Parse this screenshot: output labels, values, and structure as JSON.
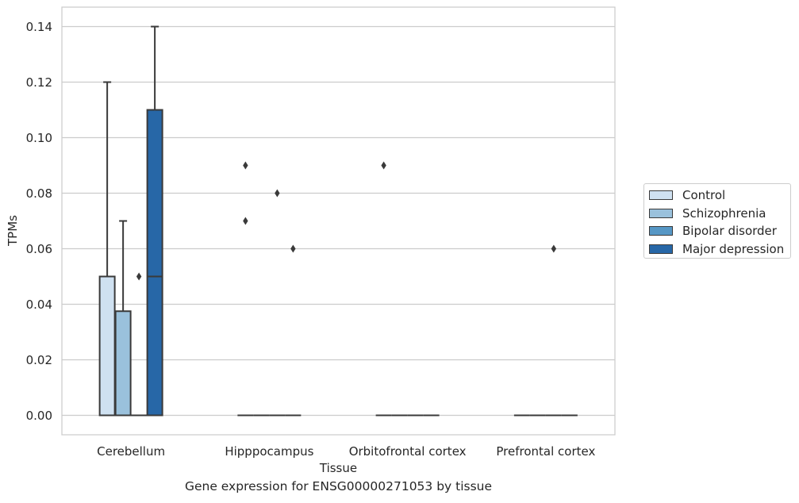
{
  "chart_data": {
    "type": "box",
    "xlabel": "Tissue",
    "ylabel": "TPMs",
    "ylim": [
      -0.0069,
      0.147
    ],
    "yticks": [
      0.0,
      0.02,
      0.04,
      0.06,
      0.08,
      0.1,
      0.12,
      0.14
    ],
    "ytick_labels": [
      "0.00",
      "0.02",
      "0.04",
      "0.06",
      "0.08",
      "0.10",
      "0.12",
      "0.14"
    ],
    "grid": true,
    "legend_position": "right",
    "categories": [
      "Cerebellum",
      "Hipppocampus",
      "Orbitofrontal cortex",
      "Prefrontal cortex"
    ],
    "series": [
      {
        "name": "Control",
        "color": "#cfe1f1"
      },
      {
        "name": "Schizophrenia",
        "color": "#9ac1dc"
      },
      {
        "name": "Bipolar disorder",
        "color": "#5697c5"
      },
      {
        "name": "Major depression",
        "color": "#2767a7"
      }
    ],
    "boxes": [
      {
        "category": 0,
        "series": 0,
        "q1": 0.0,
        "median": 0.0,
        "q3": 0.05,
        "whisker_low": 0.0,
        "whisker_high": 0.12,
        "outliers": []
      },
      {
        "category": 0,
        "series": 1,
        "q1": 0.0,
        "median": 0.0,
        "q3": 0.0375,
        "whisker_low": 0.0,
        "whisker_high": 0.07,
        "outliers": []
      },
      {
        "category": 0,
        "series": 2,
        "q1": 0.0,
        "median": 0.0,
        "q3": 0.0,
        "whisker_low": 0.0,
        "whisker_high": 0.0,
        "outliers": [
          0.05
        ]
      },
      {
        "category": 0,
        "series": 3,
        "q1": 0.0,
        "median": 0.05,
        "q3": 0.11,
        "whisker_low": 0.0,
        "whisker_high": 0.14,
        "outliers": []
      },
      {
        "category": 1,
        "series": 0,
        "q1": 0.0,
        "median": 0.0,
        "q3": 0.0,
        "whisker_low": 0.0,
        "whisker_high": 0.0,
        "outliers": [
          0.09,
          0.07
        ]
      },
      {
        "category": 1,
        "series": 1,
        "q1": 0.0,
        "median": 0.0,
        "q3": 0.0,
        "whisker_low": 0.0,
        "whisker_high": 0.0,
        "outliers": []
      },
      {
        "category": 1,
        "series": 2,
        "q1": 0.0,
        "median": 0.0,
        "q3": 0.0,
        "whisker_low": 0.0,
        "whisker_high": 0.0,
        "outliers": [
          0.08
        ]
      },
      {
        "category": 1,
        "series": 3,
        "q1": 0.0,
        "median": 0.0,
        "q3": 0.0,
        "whisker_low": 0.0,
        "whisker_high": 0.0,
        "outliers": [
          0.06
        ]
      },
      {
        "category": 2,
        "series": 0,
        "q1": 0.0,
        "median": 0.0,
        "q3": 0.0,
        "whisker_low": 0.0,
        "whisker_high": 0.0,
        "outliers": [
          0.09
        ]
      },
      {
        "category": 2,
        "series": 1,
        "q1": 0.0,
        "median": 0.0,
        "q3": 0.0,
        "whisker_low": 0.0,
        "whisker_high": 0.0,
        "outliers": []
      },
      {
        "category": 2,
        "series": 2,
        "q1": 0.0,
        "median": 0.0,
        "q3": 0.0,
        "whisker_low": 0.0,
        "whisker_high": 0.0,
        "outliers": []
      },
      {
        "category": 2,
        "series": 3,
        "q1": 0.0,
        "median": 0.0,
        "q3": 0.0,
        "whisker_low": 0.0,
        "whisker_high": 0.0,
        "outliers": []
      },
      {
        "category": 3,
        "series": 0,
        "q1": 0.0,
        "median": 0.0,
        "q3": 0.0,
        "whisker_low": 0.0,
        "whisker_high": 0.0,
        "outliers": []
      },
      {
        "category": 3,
        "series": 1,
        "q1": 0.0,
        "median": 0.0,
        "q3": 0.0,
        "whisker_low": 0.0,
        "whisker_high": 0.0,
        "outliers": []
      },
      {
        "category": 3,
        "series": 2,
        "q1": 0.0,
        "median": 0.0,
        "q3": 0.0,
        "whisker_low": 0.0,
        "whisker_high": 0.0,
        "outliers": [
          0.06
        ]
      },
      {
        "category": 3,
        "series": 3,
        "q1": 0.0,
        "median": 0.0,
        "q3": 0.0,
        "whisker_low": 0.0,
        "whisker_high": 0.0,
        "outliers": []
      }
    ],
    "caption": "Gene expression for ENSG00000271053 by tissue"
  }
}
